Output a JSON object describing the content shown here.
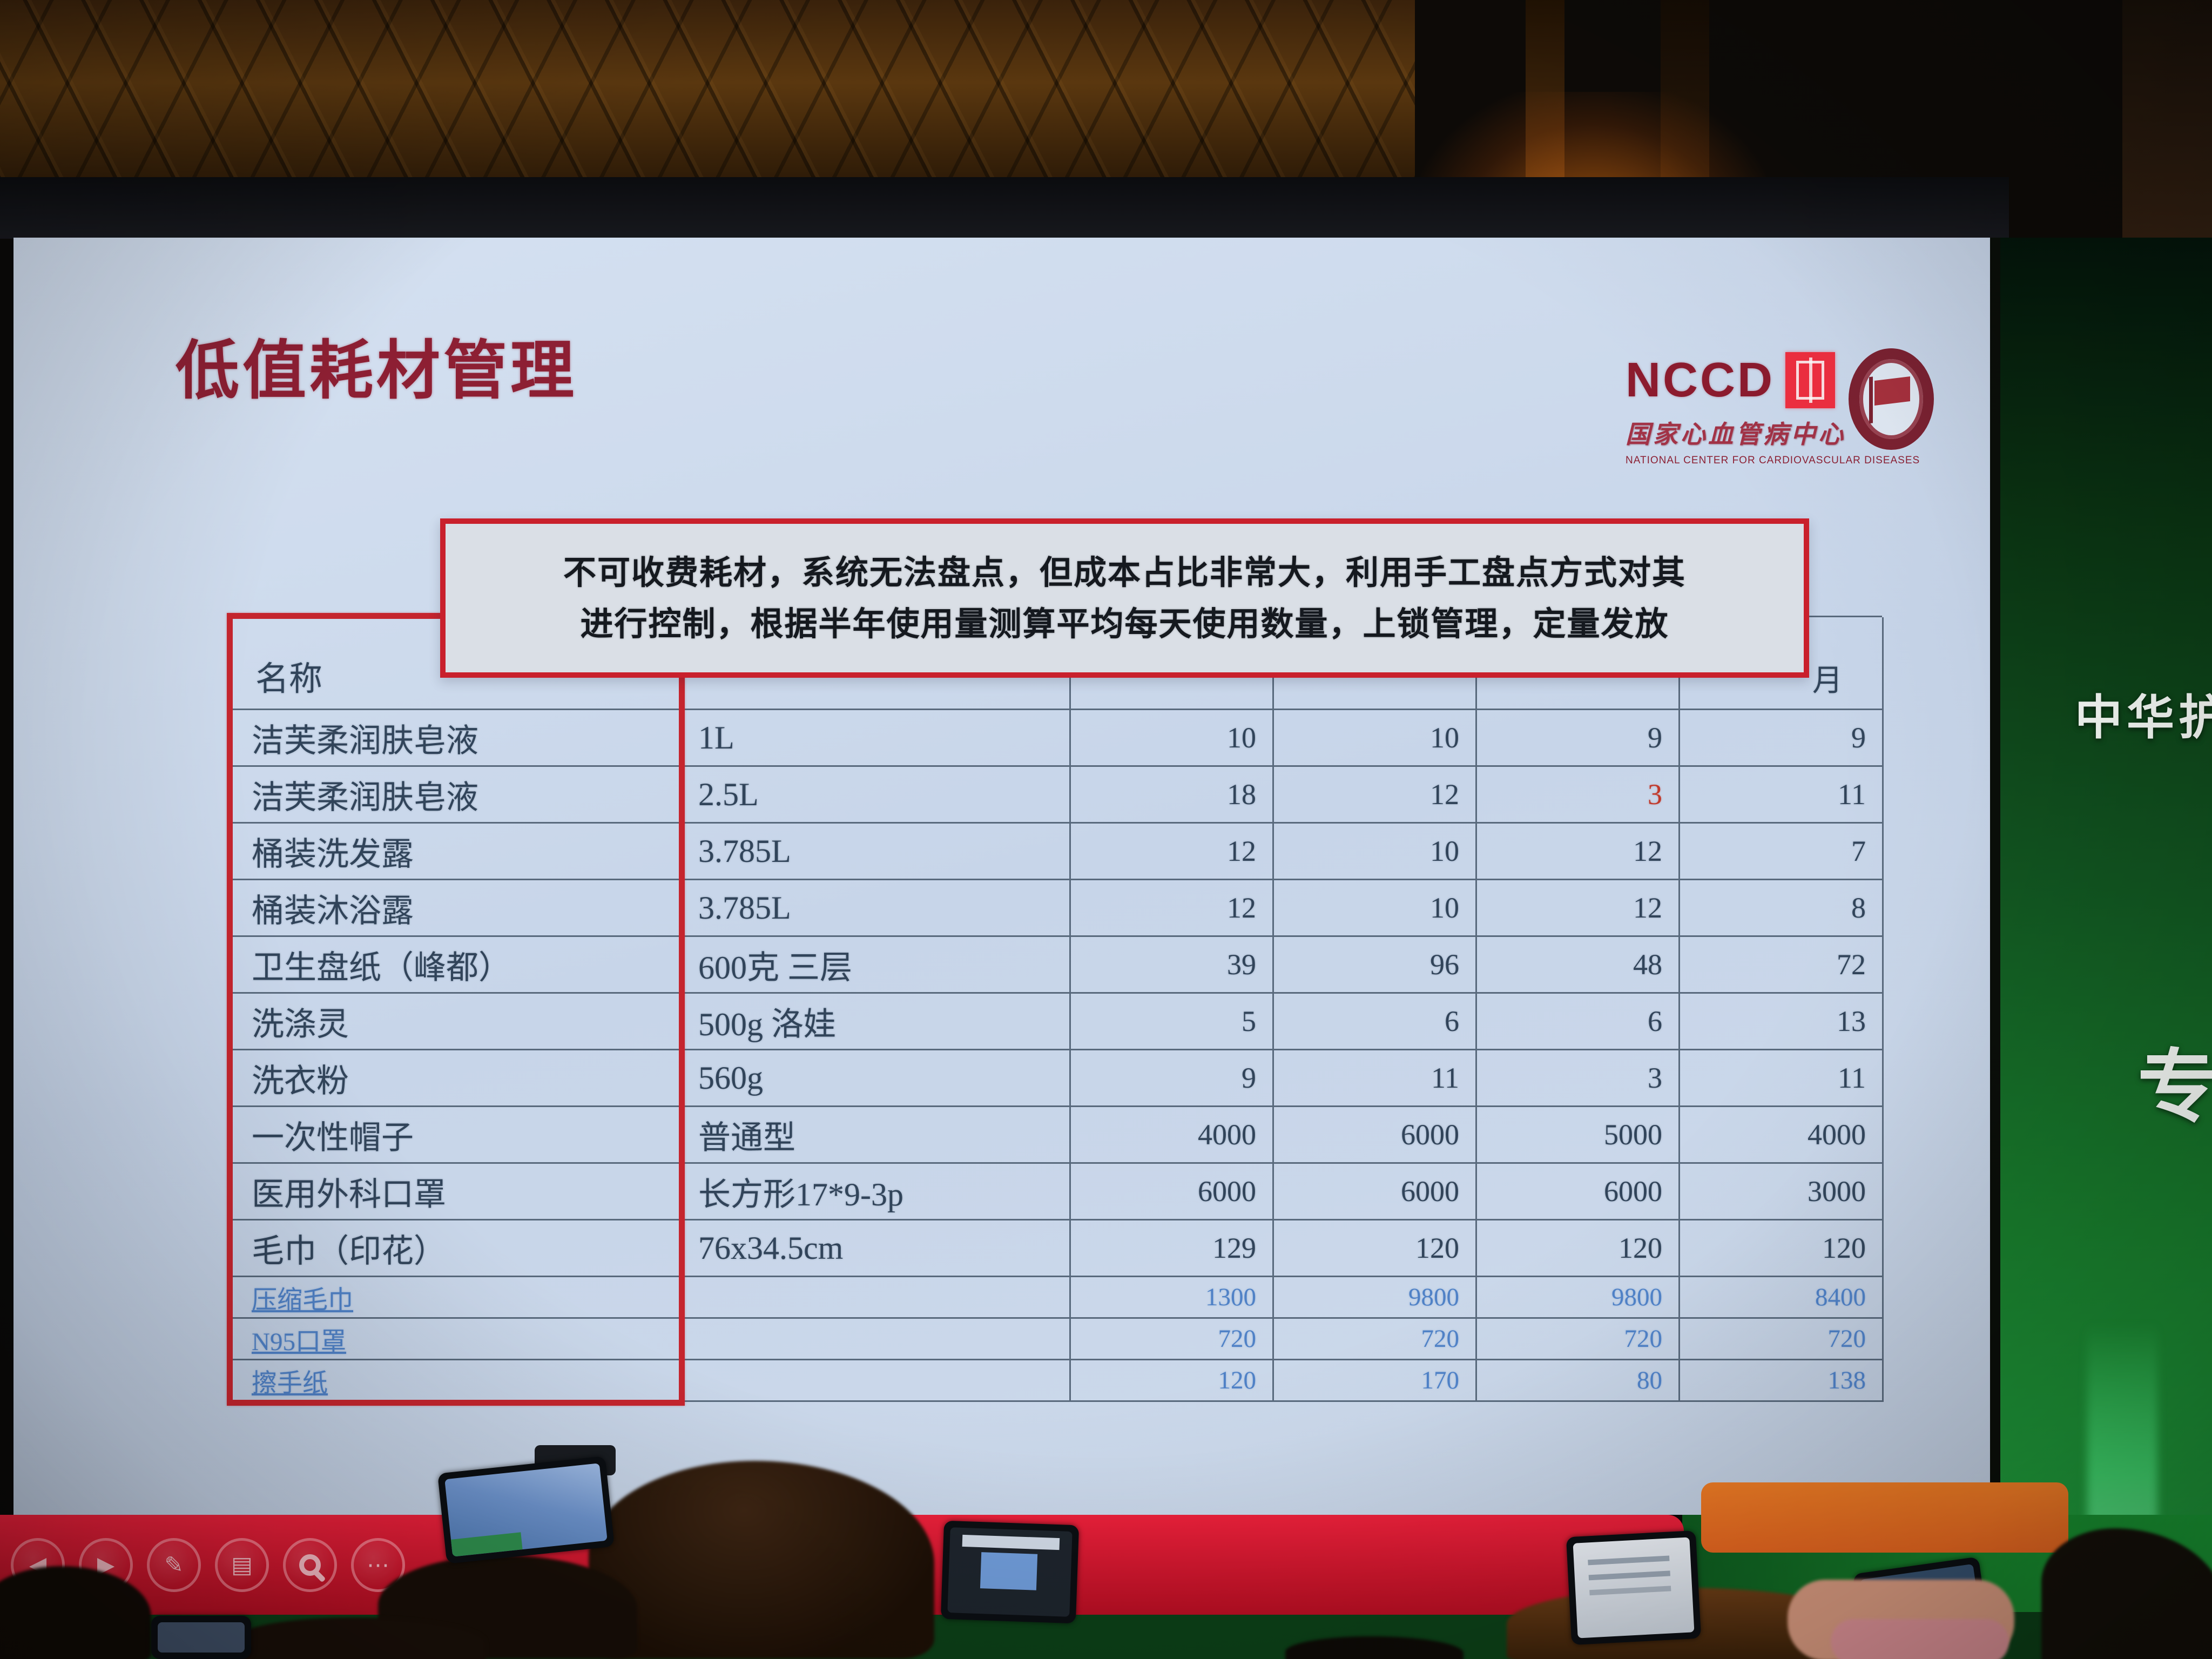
{
  "slide": {
    "title": "低值耗材管理",
    "nccd": {
      "acronym": "NCCD",
      "org_cn": "国家心血管病中心",
      "org_en": "NATIONAL CENTER FOR CARDIOVASCULAR DISEASES"
    },
    "callout_line1": "不可收费耗材，系统无法盘点，但成本占比非常大，利用手工盘点方式对其",
    "callout_line2": "进行控制，根据半年使用量测算平均每天使用数量，上锁管理，定量发放",
    "table": {
      "name_header": "名称",
      "month_header_visible": "月",
      "rows": [
        {
          "name": "洁芙柔润肤皂液",
          "spec": "1L",
          "values": [
            "10",
            "10",
            "9",
            "9"
          ],
          "style": "black"
        },
        {
          "name": "洁芙柔润肤皂液",
          "spec": "2.5L",
          "values": [
            "18",
            "12",
            "3",
            "11"
          ],
          "style": "black",
          "red_value_index": 2
        },
        {
          "name": "桶装洗发露",
          "spec": "3.785L",
          "values": [
            "12",
            "10",
            "12",
            "7"
          ],
          "style": "black"
        },
        {
          "name": "桶装沐浴露",
          "spec": "3.785L",
          "values": [
            "12",
            "10",
            "12",
            "8"
          ],
          "style": "black"
        },
        {
          "name": "卫生盘纸（峰都）",
          "spec": "600克 三层",
          "values": [
            "39",
            "96",
            "48",
            "72"
          ],
          "style": "black"
        },
        {
          "name": "洗涤灵",
          "spec": "500g 洛娃",
          "values": [
            "5",
            "6",
            "6",
            "13"
          ],
          "style": "black"
        },
        {
          "name": "洗衣粉",
          "spec": "560g",
          "values": [
            "9",
            "11",
            "3",
            "11"
          ],
          "style": "black"
        },
        {
          "name": "一次性帽子",
          "spec": "普通型",
          "values": [
            "4000",
            "6000",
            "5000",
            "4000"
          ],
          "style": "black"
        },
        {
          "name": "医用外科口罩",
          "spec": "长方形17*9-3p",
          "values": [
            "6000",
            "6000",
            "6000",
            "3000"
          ],
          "style": "black"
        },
        {
          "name": "毛巾（印花）",
          "spec": "76x34.5cm",
          "values": [
            "129",
            "120",
            "120",
            "120"
          ],
          "style": "black"
        },
        {
          "name": "压缩毛巾",
          "spec": "",
          "values": [
            "1300",
            "9800",
            "9800",
            "8400"
          ],
          "style": "blue"
        },
        {
          "name": "N95口罩",
          "spec": "",
          "values": [
            "720",
            "720",
            "720",
            "720"
          ],
          "style": "blue"
        },
        {
          "name": "擦手纸",
          "spec": "",
          "values": [
            "120",
            "170",
            "80",
            "138"
          ],
          "style": "blue"
        }
      ]
    }
  },
  "backdrop": {
    "top_text": "中华护",
    "bottom_text": "专"
  },
  "toolbar": {
    "buttons": [
      {
        "name": "previous-slide",
        "glyph": "◀"
      },
      {
        "name": "next-slide",
        "glyph": "▶"
      },
      {
        "name": "pen",
        "glyph": "✎"
      },
      {
        "name": "slide-panel",
        "glyph": "▤"
      },
      {
        "name": "zoom",
        "glyph": ""
      },
      {
        "name": "more",
        "glyph": "⋯"
      }
    ]
  },
  "colors": {
    "title_red": "#8d1f33",
    "callout_border": "#c9202c",
    "table_text": "#31445a",
    "table_blue": "#4f81c6",
    "value_red": "#c0392b",
    "bar_red": "#d41a2c",
    "orange_panel": "#e2641f",
    "slide_bg": "#ccd9ea"
  }
}
